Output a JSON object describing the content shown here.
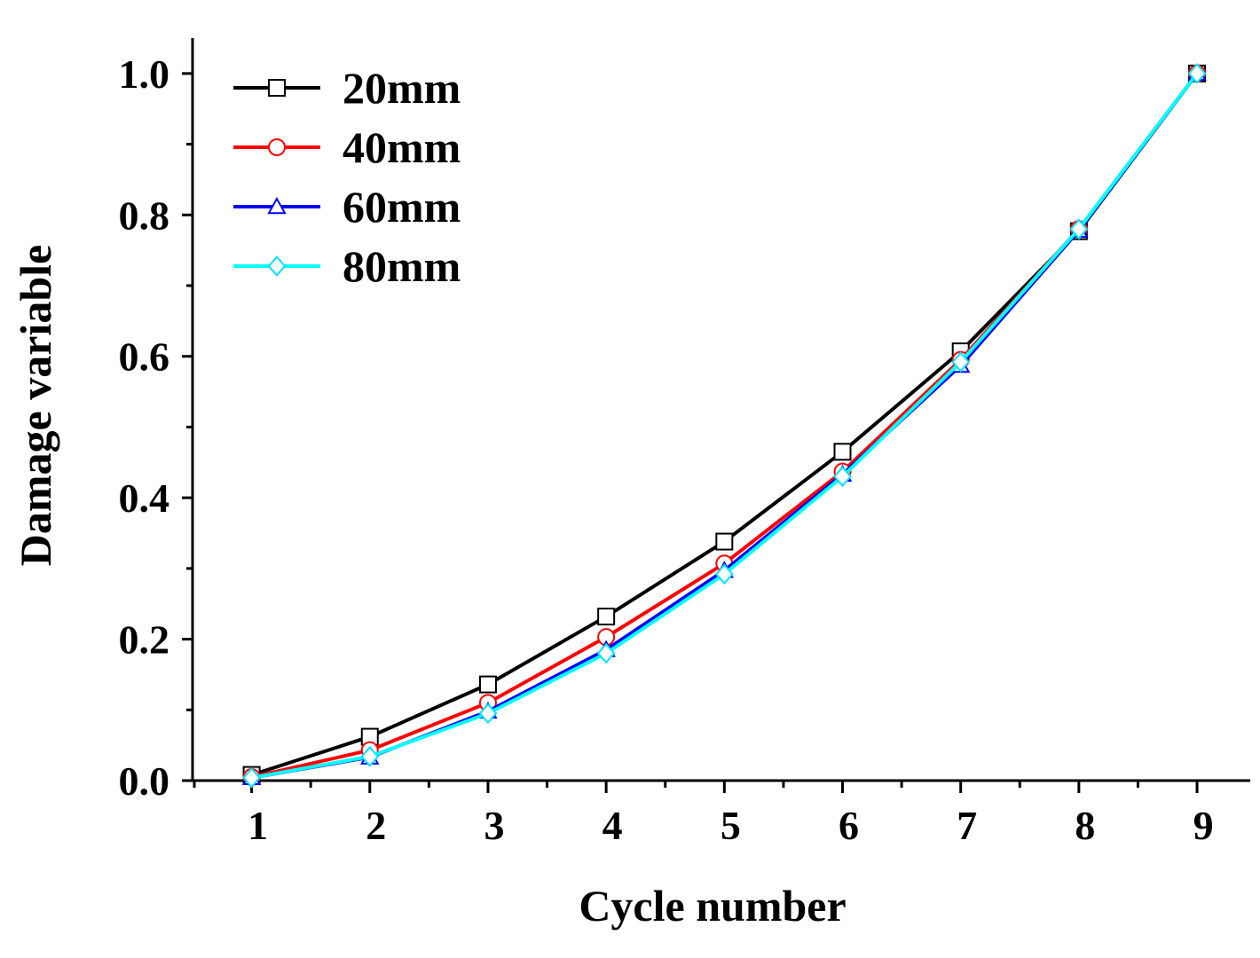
{
  "chart_data": {
    "type": "line",
    "title": "",
    "xlabel": "Cycle number",
    "ylabel": "Damage variable",
    "x": [
      1,
      2,
      3,
      4,
      5,
      6,
      7,
      8,
      9
    ],
    "xlim": [
      0.5,
      9.45
    ],
    "ylim": [
      0,
      1.05
    ],
    "xticks": [
      "1",
      "2",
      "3",
      "4",
      "5",
      "6",
      "7",
      "8",
      "9"
    ],
    "yticks": [
      "0.0",
      "0.2",
      "0.4",
      "0.6",
      "0.8",
      "1.0"
    ],
    "ytick_values": [
      0,
      0.2,
      0.4,
      0.6,
      0.8,
      1.0
    ],
    "legend_position": "top-left",
    "grid": false,
    "series": [
      {
        "name": "20mm",
        "color": "#000000",
        "marker": "square",
        "values": [
          0.008,
          0.062,
          0.136,
          0.232,
          0.338,
          0.465,
          0.607,
          0.777,
          1.0
        ]
      },
      {
        "name": "40mm",
        "color": "#ff0000",
        "marker": "circle",
        "values": [
          0.005,
          0.043,
          0.11,
          0.203,
          0.307,
          0.437,
          0.595,
          0.78,
          1.0
        ]
      },
      {
        "name": "60mm",
        "color": "#0000ff",
        "marker": "triangle",
        "values": [
          0.004,
          0.033,
          0.098,
          0.185,
          0.297,
          0.433,
          0.587,
          0.778,
          1.0
        ]
      },
      {
        "name": "80mm",
        "color": "#00ffff",
        "marker": "diamond",
        "values": [
          0.004,
          0.034,
          0.095,
          0.18,
          0.292,
          0.43,
          0.592,
          0.78,
          1.0
        ]
      }
    ]
  }
}
